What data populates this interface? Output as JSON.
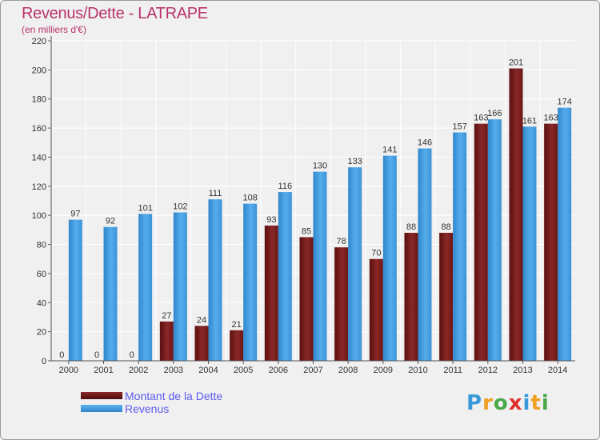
{
  "title": "Revenus/Dette - LATRAPE",
  "subtitle": "(en milliers d'€)",
  "chart_data": {
    "type": "bar",
    "categories": [
      "2000",
      "2001",
      "2002",
      "2003",
      "2004",
      "2005",
      "2006",
      "2007",
      "2008",
      "2009",
      "2010",
      "2011",
      "2012",
      "2013",
      "2014"
    ],
    "series": [
      {
        "name": "Montant de la Dette",
        "color": "#7a1c1c",
        "values": [
          0,
          0,
          0,
          27,
          24,
          21,
          93,
          85,
          78,
          70,
          88,
          88,
          163,
          201,
          163
        ]
      },
      {
        "name": "Revenus",
        "color": "#3f9be0",
        "values": [
          97,
          92,
          101,
          102,
          111,
          108,
          116,
          130,
          133,
          141,
          146,
          157,
          166,
          161,
          174
        ]
      }
    ],
    "ylim": [
      0,
      220
    ],
    "yticks": [
      0,
      20,
      40,
      60,
      80,
      100,
      120,
      140,
      160,
      180,
      200,
      220
    ],
    "grid": true,
    "legend_position": "bottom-left"
  },
  "logo": {
    "text": "Proxiti",
    "letters": [
      {
        "ch": "P",
        "color": "#3a9ad9"
      },
      {
        "ch": "r",
        "color": "#f0a020"
      },
      {
        "ch": "o",
        "color": "#4aa84a"
      },
      {
        "ch": "x",
        "color": "#e0302c"
      },
      {
        "ch": "i",
        "color": "#3a9ad9"
      },
      {
        "ch": "t",
        "color": "#f0a020"
      },
      {
        "ch": "i",
        "color": "#4aa84a"
      }
    ]
  }
}
